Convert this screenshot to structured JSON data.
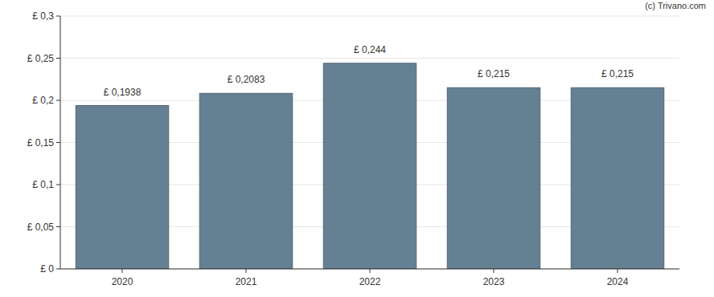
{
  "chart_data": {
    "type": "bar",
    "categories": [
      "2020",
      "2021",
      "2022",
      "2023",
      "2024"
    ],
    "values": [
      0.1938,
      0.2083,
      0.244,
      0.215,
      0.215
    ],
    "value_labels": [
      "£ 0,1938",
      "£ 0,2083",
      "£ 0,244",
      "£ 0,215",
      "£ 0,215"
    ],
    "color": "#657f93",
    "ylim": [
      0,
      0.3
    ],
    "yticks": [
      {
        "value": 0,
        "label": "£ 0"
      },
      {
        "value": 0.05,
        "label": "£ 0,05"
      },
      {
        "value": 0.1,
        "label": "£ 0,1"
      },
      {
        "value": 0.15,
        "label": "£ 0,15"
      },
      {
        "value": 0.2,
        "label": "£ 0,2"
      },
      {
        "value": 0.25,
        "label": "£ 0,25"
      },
      {
        "value": 0.3,
        "label": "£ 0,3"
      }
    ],
    "grid": true,
    "data_labels": true,
    "annotations": [
      "(c) Trivano.com"
    ]
  }
}
